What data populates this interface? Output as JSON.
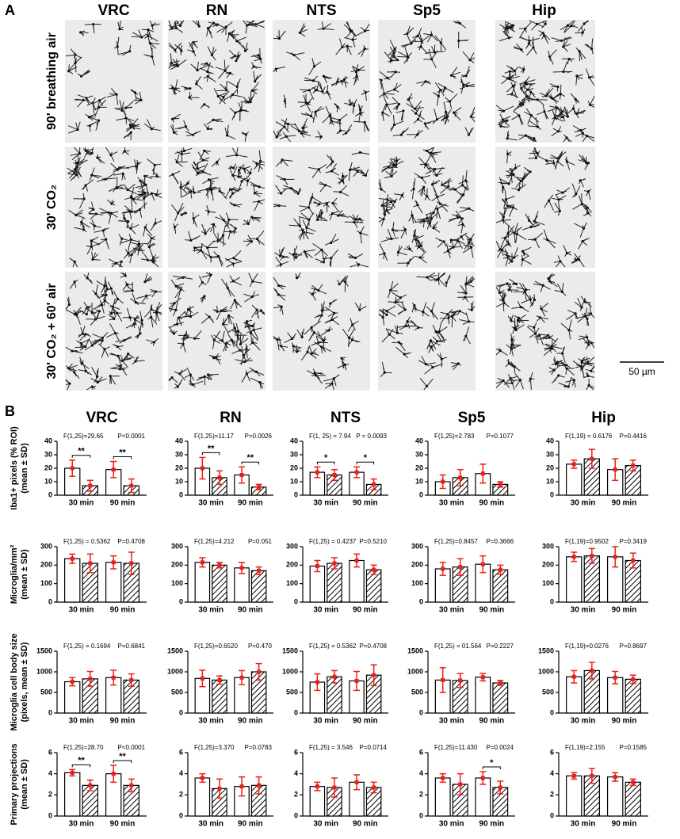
{
  "panel_a": {
    "label": "A",
    "columns": [
      "VRC",
      "RN",
      "NTS",
      "Sp5",
      "Hip"
    ],
    "rows": [
      {
        "label": "90' breathing air",
        "color": "#000000"
      },
      {
        "label": "30' CO₂",
        "color": "#e8201c"
      },
      {
        "label": "30' CO₂ + 60' air",
        "color": "#e8201c"
      }
    ],
    "scale_bar": "50 µm"
  },
  "panel_b": {
    "label": "B"
  },
  "chart_data": [
    {
      "type": "bar",
      "title": "VRC",
      "ylabel": [
        "Iba1+ pixels (% ROI)",
        "(mean ± SD)"
      ],
      "categories": [
        "30 min",
        "90 min"
      ],
      "ylim": [
        0,
        40
      ],
      "yticks": [
        0,
        10,
        20,
        30,
        40
      ],
      "annotations": [
        "F(1,25)=29.65",
        "P<0.0001"
      ],
      "series": [
        {
          "fill": "#ffffff",
          "values": [
            20,
            19
          ],
          "errors": [
            6,
            6
          ]
        },
        {
          "fill": "hatch",
          "values": [
            7,
            7
          ],
          "errors": [
            4,
            5
          ]
        }
      ],
      "significance": [
        {
          "category": 0,
          "label": "**"
        },
        {
          "category": 1,
          "label": "**"
        }
      ]
    },
    {
      "type": "bar",
      "title": "RN",
      "categories": [
        "30 min",
        "90 min"
      ],
      "ylim": [
        0,
        40
      ],
      "yticks": [
        0,
        10,
        20,
        30,
        40
      ],
      "annotations": [
        "F(1,25)=11.17",
        "P=0.0026"
      ],
      "series": [
        {
          "fill": "#ffffff",
          "values": [
            20,
            15
          ],
          "errors": [
            8,
            6
          ]
        },
        {
          "fill": "hatch",
          "values": [
            13,
            6
          ],
          "errors": [
            5,
            2
          ]
        }
      ],
      "significance": [
        {
          "category": 0,
          "label": "**"
        },
        {
          "category": 1,
          "label": "**"
        }
      ]
    },
    {
      "type": "bar",
      "title": "NTS",
      "categories": [
        "30 min",
        "90 min"
      ],
      "ylim": [
        0,
        40
      ],
      "yticks": [
        0,
        10,
        20,
        30,
        40
      ],
      "annotations": [
        "F(1, 25) = 7.94",
        "P = 0.0093"
      ],
      "series": [
        {
          "fill": "#ffffff",
          "values": [
            17,
            17
          ],
          "errors": [
            4,
            4
          ]
        },
        {
          "fill": "hatch",
          "values": [
            15,
            8
          ],
          "errors": [
            4,
            4
          ]
        }
      ],
      "significance": [
        {
          "category": 0,
          "label": "*"
        },
        {
          "category": 1,
          "label": "*"
        }
      ]
    },
    {
      "type": "bar",
      "title": "Sp5",
      "categories": [
        "30 min",
        "90 min"
      ],
      "ylim": [
        0,
        40
      ],
      "yticks": [
        0,
        10,
        20,
        30,
        40
      ],
      "annotations": [
        "F(1,25)=2.783",
        "P=0.1077"
      ],
      "series": [
        {
          "fill": "#ffffff",
          "values": [
            10,
            16
          ],
          "errors": [
            5,
            7
          ]
        },
        {
          "fill": "hatch",
          "values": [
            13,
            8
          ],
          "errors": [
            6,
            2
          ]
        }
      ]
    },
    {
      "type": "bar",
      "title": "Hip",
      "categories": [
        "30 min",
        "90 min"
      ],
      "ylim": [
        0,
        40
      ],
      "yticks": [
        0,
        10,
        20,
        30,
        40
      ],
      "annotations": [
        "F(1,19) = 0.6176",
        "P=0.4416"
      ],
      "series": [
        {
          "fill": "#ffffff",
          "values": [
            23,
            19
          ],
          "errors": [
            3,
            8
          ]
        },
        {
          "fill": "hatch",
          "values": [
            27,
            22
          ],
          "errors": [
            7,
            4
          ]
        }
      ]
    },
    {
      "type": "bar",
      "ylabel": [
        "Microglia/mm²",
        "(mean ± SD)"
      ],
      "categories": [
        "30 min",
        "90 min"
      ],
      "ylim": [
        0,
        300
      ],
      "yticks": [
        0,
        100,
        200,
        300
      ],
      "annotations": [
        "F(1,25) = 0.5362",
        "P=0.4708"
      ],
      "series": [
        {
          "fill": "#ffffff",
          "values": [
            235,
            215
          ],
          "errors": [
            25,
            35
          ]
        },
        {
          "fill": "hatch",
          "values": [
            210,
            210
          ],
          "errors": [
            50,
            60
          ]
        }
      ]
    },
    {
      "type": "bar",
      "categories": [
        "30 min",
        "90 min"
      ],
      "ylim": [
        0,
        300
      ],
      "yticks": [
        0,
        100,
        200,
        300
      ],
      "annotations": [
        "F(1,25)=4.212",
        "P=0.051"
      ],
      "series": [
        {
          "fill": "#ffffff",
          "values": [
            215,
            185
          ],
          "errors": [
            25,
            30
          ]
        },
        {
          "fill": "hatch",
          "values": [
            200,
            170
          ],
          "errors": [
            15,
            20
          ]
        }
      ]
    },
    {
      "type": "bar",
      "categories": [
        "30 min",
        "90 min"
      ],
      "ylim": [
        0,
        300
      ],
      "yticks": [
        0,
        100,
        200,
        300
      ],
      "annotations": [
        "F(1,25) = 0.4237",
        "P=0.5210"
      ],
      "series": [
        {
          "fill": "#ffffff",
          "values": [
            195,
            225
          ],
          "errors": [
            30,
            35
          ]
        },
        {
          "fill": "hatch",
          "values": [
            210,
            175
          ],
          "errors": [
            30,
            25
          ]
        }
      ]
    },
    {
      "type": "bar",
      "categories": [
        "30 min",
        "90 min"
      ],
      "ylim": [
        0,
        300
      ],
      "yticks": [
        0,
        100,
        200,
        300
      ],
      "annotations": [
        "F(1,25)=0.8457",
        "P=0.3666"
      ],
      "series": [
        {
          "fill": "#ffffff",
          "values": [
            180,
            205
          ],
          "errors": [
            35,
            45
          ]
        },
        {
          "fill": "hatch",
          "values": [
            190,
            175
          ],
          "errors": [
            45,
            25
          ]
        }
      ]
    },
    {
      "type": "bar",
      "categories": [
        "30 min",
        "90 min"
      ],
      "ylim": [
        0,
        300
      ],
      "yticks": [
        0,
        100,
        200,
        300
      ],
      "annotations": [
        "F(1,19)=0.9502",
        "P=0.3419"
      ],
      "series": [
        {
          "fill": "#ffffff",
          "values": [
            245,
            245
          ],
          "errors": [
            25,
            55
          ]
        },
        {
          "fill": "hatch",
          "values": [
            250,
            225
          ],
          "errors": [
            40,
            40
          ]
        }
      ]
    },
    {
      "type": "bar",
      "ylabel": [
        "Microglia cell body size",
        "(pixels, mean ± SD)"
      ],
      "categories": [
        "30 min",
        "90 min"
      ],
      "ylim": [
        0,
        1500
      ],
      "yticks": [
        0,
        500,
        1000,
        1500
      ],
      "annotations": [
        "F(1,25) = 0.1694",
        "P=0.6841"
      ],
      "series": [
        {
          "fill": "#ffffff",
          "values": [
            760,
            860
          ],
          "errors": [
            100,
            180
          ]
        },
        {
          "fill": "hatch",
          "values": [
            830,
            800
          ],
          "errors": [
            180,
            150
          ]
        }
      ]
    },
    {
      "type": "bar",
      "categories": [
        "30 min",
        "90 min"
      ],
      "ylim": [
        0,
        1500
      ],
      "yticks": [
        0,
        500,
        1000,
        1500
      ],
      "annotations": [
        "F(1,25)=0.6520",
        "P=0.470"
      ],
      "series": [
        {
          "fill": "#ffffff",
          "values": [
            840,
            860
          ],
          "errors": [
            200,
            170
          ]
        },
        {
          "fill": "hatch",
          "values": [
            800,
            1000
          ],
          "errors": [
            100,
            200
          ]
        }
      ]
    },
    {
      "type": "bar",
      "categories": [
        "30 min",
        "90 min"
      ],
      "ylim": [
        0,
        1500
      ],
      "yticks": [
        0,
        500,
        1000,
        1500
      ],
      "annotations": [
        "F(1,25) = 0.5362",
        "P=0.4708"
      ],
      "series": [
        {
          "fill": "#ffffff",
          "values": [
            750,
            780
          ],
          "errors": [
            200,
            230
          ]
        },
        {
          "fill": "hatch",
          "values": [
            880,
            920
          ],
          "errors": [
            150,
            250
          ]
        }
      ]
    },
    {
      "type": "bar",
      "categories": [
        "30 min",
        "90 min"
      ],
      "ylim": [
        0,
        1500
      ],
      "yticks": [
        0,
        500,
        1000,
        1500
      ],
      "annotations": [
        "F(1,25) = 01.564",
        "P=0.2227"
      ],
      "series": [
        {
          "fill": "#ffffff",
          "values": [
            800,
            870
          ],
          "errors": [
            300,
            90
          ]
        },
        {
          "fill": "hatch",
          "values": [
            790,
            730
          ],
          "errors": [
            170,
            60
          ]
        }
      ]
    },
    {
      "type": "bar",
      "categories": [
        "30 min",
        "90 min"
      ],
      "ylim": [
        0,
        1500
      ],
      "yticks": [
        0,
        500,
        1000,
        1500
      ],
      "annotations": [
        "F(1,19)=0.0276",
        "P=0.8697"
      ],
      "series": [
        {
          "fill": "#ffffff",
          "values": [
            880,
            860
          ],
          "errors": [
            150,
            150
          ]
        },
        {
          "fill": "hatch",
          "values": [
            1030,
            820
          ],
          "errors": [
            200,
            100
          ]
        }
      ]
    },
    {
      "type": "bar",
      "ylabel": [
        "Primary projections",
        "(mean ± SD)"
      ],
      "categories": [
        "30 min",
        "90 min"
      ],
      "ylim": [
        0,
        6
      ],
      "yticks": [
        0,
        2,
        4,
        6
      ],
      "annotations": [
        "F(1,25)=28.70",
        "P<0.0001"
      ],
      "series": [
        {
          "fill": "#ffffff",
          "values": [
            4.1,
            4.0
          ],
          "errors": [
            0.3,
            0.8
          ]
        },
        {
          "fill": "hatch",
          "values": [
            2.9,
            2.9
          ],
          "errors": [
            0.5,
            0.6
          ]
        }
      ],
      "significance": [
        {
          "category": 0,
          "label": "**"
        },
        {
          "category": 1,
          "label": "**"
        }
      ]
    },
    {
      "type": "bar",
      "categories": [
        "30 min",
        "90 min"
      ],
      "ylim": [
        0,
        6
      ],
      "yticks": [
        0,
        2,
        4,
        6
      ],
      "annotations": [
        "F(1,25)=3.370",
        "P=0.0783"
      ],
      "series": [
        {
          "fill": "#ffffff",
          "values": [
            3.6,
            2.8
          ],
          "errors": [
            0.4,
            0.9
          ]
        },
        {
          "fill": "hatch",
          "values": [
            2.6,
            2.9
          ],
          "errors": [
            0.9,
            0.8
          ]
        }
      ]
    },
    {
      "type": "bar",
      "categories": [
        "30 min",
        "90 min"
      ],
      "ylim": [
        0,
        6
      ],
      "yticks": [
        0,
        2,
        4,
        6
      ],
      "annotations": [
        "F(1,25) = 3.546",
        "P=0.0714"
      ],
      "series": [
        {
          "fill": "#ffffff",
          "values": [
            2.8,
            3.2
          ],
          "errors": [
            0.4,
            0.7
          ]
        },
        {
          "fill": "hatch",
          "values": [
            2.7,
            2.7
          ],
          "errors": [
            0.9,
            0.5
          ]
        }
      ]
    },
    {
      "type": "bar",
      "categories": [
        "30 min",
        "90 min"
      ],
      "ylim": [
        0,
        6
      ],
      "yticks": [
        0,
        2,
        4,
        6
      ],
      "annotations": [
        "F(1,25)=11.430",
        "P=0.0024"
      ],
      "series": [
        {
          "fill": "#ffffff",
          "values": [
            3.6,
            3.6
          ],
          "errors": [
            0.4,
            0.6
          ]
        },
        {
          "fill": "hatch",
          "values": [
            3.0,
            2.7
          ],
          "errors": [
            1.0,
            0.6
          ]
        }
      ],
      "significance": [
        {
          "category": 1,
          "label": "*"
        }
      ]
    },
    {
      "type": "bar",
      "categories": [
        "30 min",
        "90 min"
      ],
      "ylim": [
        0,
        6
      ],
      "yticks": [
        0,
        2,
        4,
        6
      ],
      "annotations": [
        "F(1,19)=2.155",
        "P=0.1585"
      ],
      "series": [
        {
          "fill": "#ffffff",
          "values": [
            3.8,
            3.7
          ],
          "errors": [
            0.3,
            0.4
          ]
        },
        {
          "fill": "hatch",
          "values": [
            3.8,
            3.2
          ],
          "errors": [
            0.7,
            0.3
          ]
        }
      ]
    }
  ]
}
